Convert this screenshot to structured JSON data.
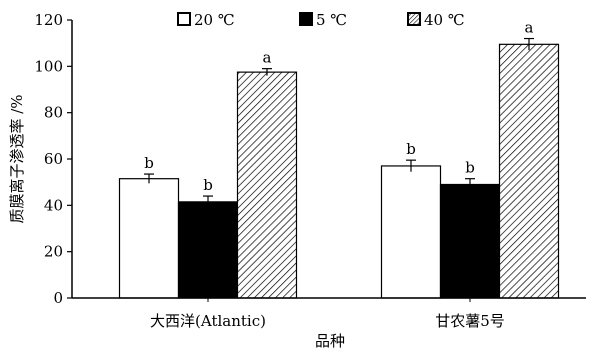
{
  "chart_data": {
    "type": "bar",
    "title": "",
    "xlabel": "品种",
    "ylabel": "质膜离子渗透率 /%",
    "ylim": [
      0,
      120
    ],
    "yticks": [
      "0",
      "20",
      "40",
      "60",
      "80",
      "100",
      "120"
    ],
    "categories": [
      "大西洋(Atlantic)",
      "甘农薯5号"
    ],
    "legend_position": "top",
    "series": [
      {
        "name": "20 ℃",
        "values": [
          51.5,
          57
        ],
        "errors": [
          2,
          2.5
        ],
        "letters": [
          "b",
          "b"
        ],
        "fill": "white"
      },
      {
        "name": "5 ℃",
        "values": [
          41.5,
          49
        ],
        "errors": [
          2.5,
          2.5
        ],
        "letters": [
          "b",
          "b"
        ],
        "fill": "black"
      },
      {
        "name": "40 ℃",
        "values": [
          97.5,
          109.5
        ],
        "errors": [
          1.5,
          2.5
        ],
        "letters": [
          "a",
          "a"
        ],
        "fill": "hatch"
      }
    ],
    "colors": {
      "axis": "#000000",
      "bar_stroke": "#000000",
      "black_fill": "#000000",
      "white_fill": "#ffffff"
    }
  }
}
